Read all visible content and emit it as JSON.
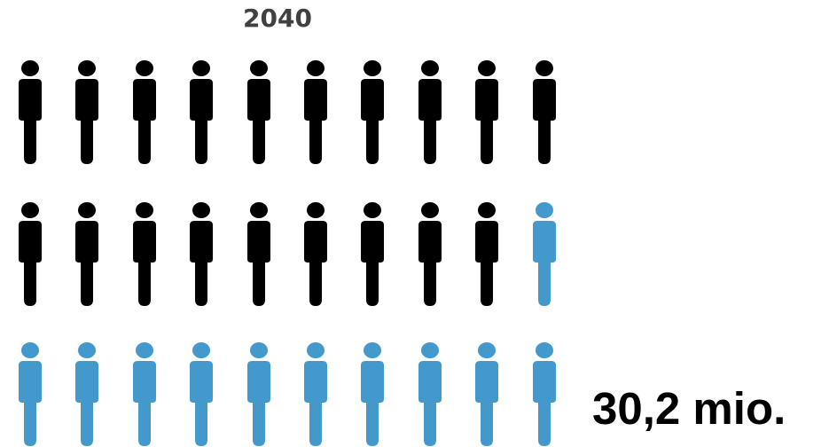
{
  "chart_data": {
    "type": "pictogram",
    "title": "2040",
    "total_icons": 30,
    "icons_per_row": 10,
    "rows": 3,
    "category_counts": {
      "black": 19,
      "blue": 11
    },
    "colors": {
      "black": "#000000",
      "blue": "#4499cc"
    },
    "annotation": "30,2 mio."
  }
}
